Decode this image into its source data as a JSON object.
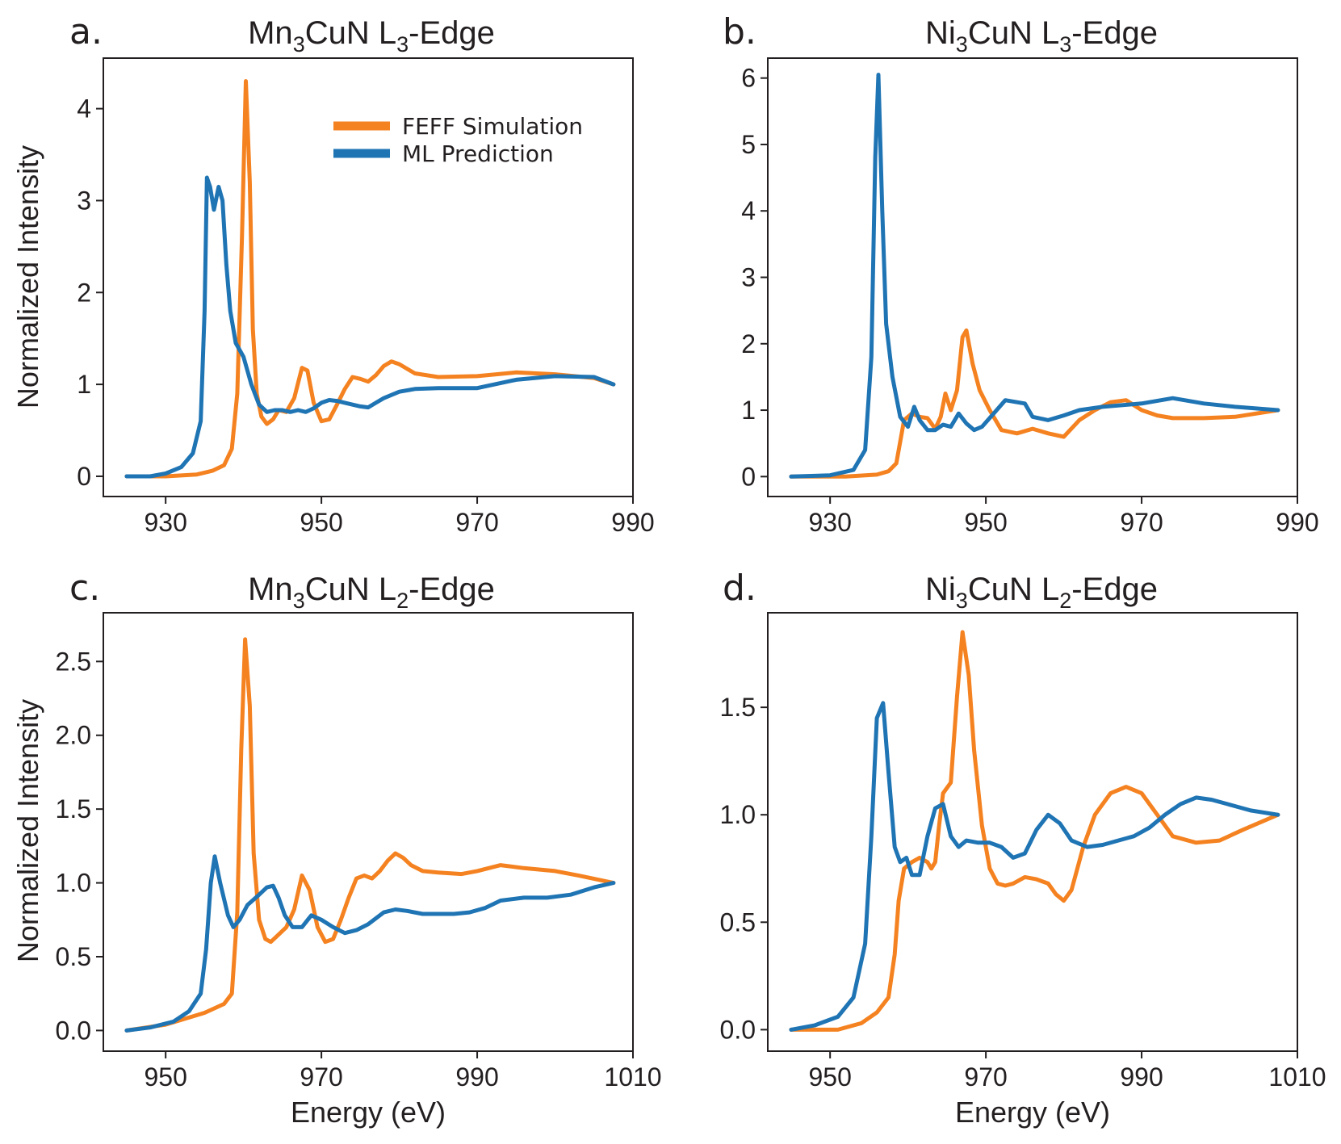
{
  "colors": {
    "feff": "#f58220",
    "ml": "#1f74b4",
    "axis": "#231f20"
  },
  "legend": {
    "feff": "FEFF Simulation",
    "ml": "ML Prediction",
    "placement": "upper-right of panel a"
  },
  "chart_data": [
    {
      "panel": "a.",
      "type": "line",
      "title": {
        "base": "Mn",
        "sub1": "3",
        "mid": "CuN L",
        "sub2": "3",
        "tail": "-Edge"
      },
      "xlabel": "",
      "ylabel": "Normalized Intensity",
      "xlim": [
        922,
        990
      ],
      "ylim": [
        -0.22,
        4.55
      ],
      "xticks": [
        930,
        950,
        970,
        990
      ],
      "xtick_labels": [
        "930",
        "950",
        "970",
        "990"
      ],
      "yticks": [
        0,
        1,
        2,
        3,
        4
      ],
      "ytick_labels": [
        "0",
        "1",
        "2",
        "3",
        "4"
      ],
      "series": [
        {
          "name": "FEFF Simulation",
          "key": "feff",
          "x": [
            925,
            930,
            934,
            936,
            937.5,
            938.5,
            939.2,
            939.8,
            940.3,
            940.8,
            941.2,
            941.7,
            942.3,
            943,
            943.8,
            944.5,
            945.5,
            946.5,
            947.5,
            948.2,
            949,
            950,
            951,
            952,
            953,
            954,
            955,
            956,
            957,
            958,
            959,
            960,
            962,
            965,
            970,
            975,
            980,
            985,
            987.5
          ],
          "y": [
            0,
            0,
            0.02,
            0.06,
            0.12,
            0.3,
            0.9,
            2.6,
            4.3,
            3.2,
            1.6,
            0.9,
            0.65,
            0.57,
            0.62,
            0.72,
            0.7,
            0.85,
            1.18,
            1.15,
            0.8,
            0.6,
            0.62,
            0.78,
            0.95,
            1.08,
            1.06,
            1.03,
            1.1,
            1.2,
            1.25,
            1.22,
            1.12,
            1.08,
            1.09,
            1.13,
            1.11,
            1.07,
            1.0
          ]
        },
        {
          "name": "ML Prediction",
          "key": "ml",
          "x": [
            925,
            928,
            930,
            932,
            933.5,
            934.5,
            935,
            935.3,
            935.7,
            936.2,
            936.8,
            937.3,
            937.8,
            938.3,
            939,
            940,
            941,
            942,
            943,
            944,
            945,
            946,
            947,
            948,
            949,
            950,
            951,
            952,
            953,
            954,
            955,
            956,
            957,
            958,
            960,
            962,
            965,
            970,
            975,
            980,
            985,
            987.5
          ],
          "y": [
            0,
            0,
            0.03,
            0.1,
            0.25,
            0.6,
            1.8,
            3.25,
            3.15,
            2.9,
            3.15,
            3.0,
            2.3,
            1.8,
            1.45,
            1.3,
            1.0,
            0.78,
            0.7,
            0.72,
            0.72,
            0.7,
            0.72,
            0.7,
            0.74,
            0.8,
            0.83,
            0.82,
            0.8,
            0.78,
            0.76,
            0.75,
            0.8,
            0.85,
            0.92,
            0.95,
            0.96,
            0.96,
            1.05,
            1.09,
            1.08,
            1.0
          ]
        }
      ]
    },
    {
      "panel": "b.",
      "type": "line",
      "title": {
        "base": "Ni",
        "sub1": "3",
        "mid": "CuN L",
        "sub2": "3",
        "tail": "-Edge"
      },
      "xlabel": "",
      "ylabel": "",
      "xlim": [
        922,
        990
      ],
      "ylim": [
        -0.3,
        6.3
      ],
      "xticks": [
        930,
        950,
        970,
        990
      ],
      "xtick_labels": [
        "930",
        "950",
        "970",
        "990"
      ],
      "yticks": [
        0,
        1,
        2,
        3,
        4,
        5,
        6
      ],
      "ytick_labels": [
        "0",
        "1",
        "2",
        "3",
        "4",
        "5",
        "6"
      ],
      "series": [
        {
          "name": "FEFF Simulation",
          "key": "feff",
          "x": [
            925,
            932,
            936,
            937.5,
            938.5,
            939.5,
            940.5,
            941.5,
            942.5,
            943.5,
            944.2,
            944.8,
            945.5,
            946.3,
            947,
            947.5,
            948.3,
            949.2,
            950.5,
            952,
            954,
            956,
            958,
            960,
            962,
            964,
            966,
            968,
            970,
            972,
            974,
            978,
            982,
            987.5
          ],
          "y": [
            0,
            0,
            0.03,
            0.08,
            0.2,
            0.85,
            0.95,
            0.9,
            0.88,
            0.72,
            0.9,
            1.25,
            1.0,
            1.3,
            2.1,
            2.2,
            1.7,
            1.3,
            1.0,
            0.7,
            0.65,
            0.72,
            0.65,
            0.6,
            0.85,
            1.0,
            1.12,
            1.15,
            1.0,
            0.92,
            0.88,
            0.88,
            0.9,
            1.0
          ]
        },
        {
          "name": "ML Prediction",
          "key": "ml",
          "x": [
            925,
            930,
            933,
            934.5,
            935.3,
            935.8,
            936.2,
            936.7,
            937.2,
            938,
            939,
            940,
            940.8,
            941.5,
            942.5,
            943.5,
            944.5,
            945.5,
            946.5,
            947.5,
            948.5,
            949.5,
            951,
            952.5,
            954,
            955,
            956,
            958,
            960,
            962,
            965,
            970,
            974,
            978,
            982,
            987.5
          ],
          "y": [
            0,
            0.02,
            0.1,
            0.4,
            1.8,
            4.8,
            6.05,
            4.0,
            2.3,
            1.5,
            0.9,
            0.75,
            1.05,
            0.85,
            0.7,
            0.7,
            0.78,
            0.75,
            0.95,
            0.8,
            0.7,
            0.75,
            0.95,
            1.15,
            1.12,
            1.1,
            0.9,
            0.85,
            0.92,
            1.0,
            1.05,
            1.1,
            1.18,
            1.1,
            1.05,
            1.0
          ]
        }
      ]
    },
    {
      "panel": "c.",
      "type": "line",
      "title": {
        "base": "Mn",
        "sub1": "3",
        "mid": "CuN L",
        "sub2": "2",
        "tail": "-Edge"
      },
      "xlabel": "Energy (eV)",
      "ylabel": "Normalized Intensity",
      "xlim": [
        942,
        1010
      ],
      "ylim": [
        -0.14,
        2.83
      ],
      "xticks": [
        950,
        970,
        990,
        1010
      ],
      "xtick_labels": [
        "950",
        "970",
        "990",
        "1010"
      ],
      "yticks": [
        0,
        0.5,
        1,
        1.5,
        2,
        2.5
      ],
      "ytick_labels": [
        "0.0",
        "0.5",
        "1.0",
        "1.5",
        "2.0",
        "2.5"
      ],
      "series": [
        {
          "name": "FEFF Simulation",
          "key": "feff",
          "x": [
            945,
            950,
            955,
            957.5,
            958.5,
            959.2,
            959.7,
            960.2,
            960.8,
            961.3,
            962,
            962.8,
            963.5,
            964.5,
            965.5,
            966.5,
            967.5,
            968.5,
            969.5,
            970.5,
            971.5,
            972.5,
            973.5,
            974.5,
            975.5,
            976.5,
            977.5,
            978.5,
            979.5,
            980.5,
            981.5,
            983,
            985,
            988,
            990,
            993,
            996,
            1000,
            1003,
            1007.5
          ],
          "y": [
            0,
            0.04,
            0.12,
            0.18,
            0.25,
            0.8,
            1.9,
            2.65,
            2.2,
            1.2,
            0.75,
            0.62,
            0.6,
            0.65,
            0.7,
            0.82,
            1.05,
            0.95,
            0.7,
            0.6,
            0.62,
            0.75,
            0.9,
            1.03,
            1.05,
            1.03,
            1.08,
            1.15,
            1.2,
            1.17,
            1.12,
            1.08,
            1.07,
            1.06,
            1.08,
            1.12,
            1.1,
            1.08,
            1.05,
            1.0
          ]
        },
        {
          "name": "ML Prediction",
          "key": "ml",
          "x": [
            945,
            948,
            951,
            953,
            954.5,
            955.2,
            955.8,
            956.3,
            957,
            958,
            958.7,
            959.5,
            960.5,
            962,
            963,
            963.8,
            964.5,
            965.3,
            966.3,
            967.5,
            968.7,
            970,
            971.5,
            973,
            974.5,
            976,
            978,
            979.5,
            981,
            983,
            985,
            987,
            989,
            991,
            993,
            996,
            999,
            1002,
            1005,
            1007.5
          ],
          "y": [
            0,
            0.02,
            0.06,
            0.13,
            0.25,
            0.55,
            1.0,
            1.18,
            1.0,
            0.78,
            0.7,
            0.75,
            0.85,
            0.92,
            0.97,
            0.98,
            0.9,
            0.78,
            0.7,
            0.7,
            0.78,
            0.75,
            0.7,
            0.66,
            0.68,
            0.72,
            0.8,
            0.82,
            0.81,
            0.79,
            0.79,
            0.79,
            0.8,
            0.83,
            0.88,
            0.9,
            0.9,
            0.92,
            0.97,
            1.0
          ]
        }
      ]
    },
    {
      "panel": "d.",
      "type": "line",
      "title": {
        "base": "Ni",
        "sub1": "3",
        "mid": "CuN L",
        "sub2": "2",
        "tail": "-Edge"
      },
      "xlabel": "Energy (eV)",
      "ylabel": "",
      "xlim": [
        942,
        1010
      ],
      "ylim": [
        -0.1,
        1.94
      ],
      "xticks": [
        950,
        970,
        990,
        1010
      ],
      "xtick_labels": [
        "950",
        "970",
        "990",
        "1010"
      ],
      "yticks": [
        0,
        0.5,
        1,
        1.5
      ],
      "ytick_labels": [
        "0.0",
        "0.5",
        "1.0",
        "1.5"
      ],
      "series": [
        {
          "name": "FEFF Simulation",
          "key": "feff",
          "x": [
            945,
            951,
            954,
            956,
            957.5,
            958.3,
            958.8,
            959.5,
            960.5,
            961.5,
            962.5,
            963,
            963.5,
            964,
            964.5,
            965.5,
            966.3,
            967,
            967.8,
            968.5,
            969.5,
            970.5,
            971.5,
            972.5,
            973.5,
            975,
            976.5,
            978,
            979,
            980,
            981,
            982.5,
            984,
            986,
            988,
            990,
            992,
            994,
            997,
            1000,
            1003,
            1007.5
          ],
          "y": [
            0,
            0,
            0.03,
            0.08,
            0.15,
            0.35,
            0.6,
            0.75,
            0.78,
            0.8,
            0.78,
            0.75,
            0.78,
            0.95,
            1.1,
            1.15,
            1.55,
            1.85,
            1.65,
            1.3,
            0.95,
            0.75,
            0.68,
            0.67,
            0.68,
            0.71,
            0.7,
            0.68,
            0.63,
            0.6,
            0.65,
            0.85,
            1.0,
            1.1,
            1.13,
            1.1,
            1.0,
            0.9,
            0.87,
            0.88,
            0.93,
            1.0
          ]
        },
        {
          "name": "ML Prediction",
          "key": "ml",
          "x": [
            945,
            948,
            951,
            953,
            954.5,
            955.3,
            956,
            956.8,
            957.5,
            958.3,
            959,
            959.8,
            960.5,
            961.5,
            962.5,
            963.5,
            964.5,
            965.5,
            966.5,
            967.5,
            969,
            970.5,
            972,
            973.5,
            975,
            976.5,
            978,
            979.5,
            981,
            983,
            985,
            987,
            989,
            991,
            993,
            995,
            997,
            999,
            1001,
            1004,
            1007.5
          ],
          "y": [
            0,
            0.02,
            0.06,
            0.15,
            0.4,
            0.9,
            1.45,
            1.52,
            1.2,
            0.85,
            0.78,
            0.8,
            0.72,
            0.72,
            0.9,
            1.03,
            1.05,
            0.9,
            0.85,
            0.88,
            0.87,
            0.87,
            0.85,
            0.8,
            0.82,
            0.93,
            1.0,
            0.96,
            0.88,
            0.85,
            0.86,
            0.88,
            0.9,
            0.94,
            1.0,
            1.05,
            1.08,
            1.07,
            1.05,
            1.02,
            1.0
          ]
        }
      ]
    }
  ]
}
